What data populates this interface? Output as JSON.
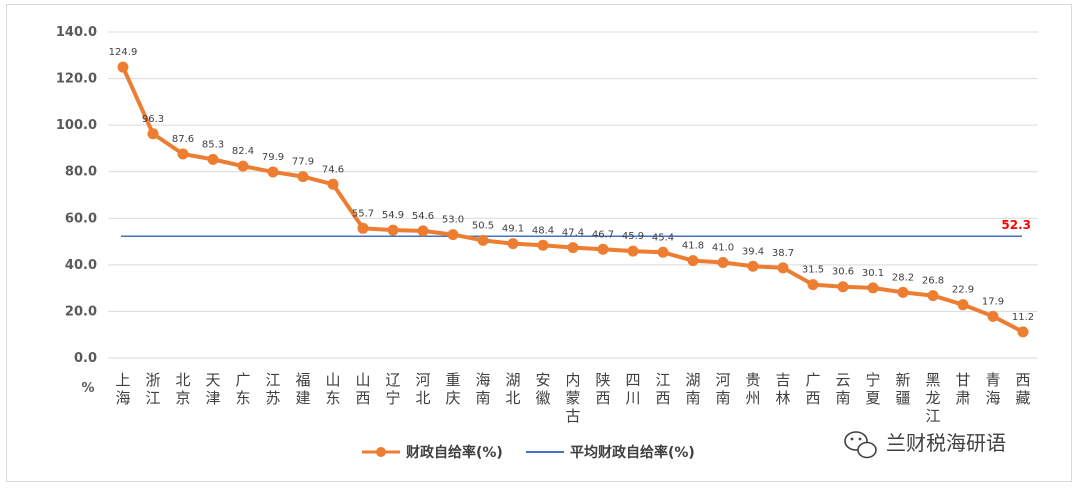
{
  "chart_data": {
    "type": "line",
    "ylim": [
      0,
      140
    ],
    "y_ticks": [
      "0.0",
      "20.0",
      "40.0",
      "60.0",
      "80.0",
      "100.0",
      "120.0",
      "140.0"
    ],
    "y_unit_label": "%",
    "grid": true,
    "legend_position": "bottom",
    "categories": [
      "上海",
      "浙江",
      "北京",
      "天津",
      "广东",
      "江苏",
      "福建",
      "山东",
      "山西",
      "辽宁",
      "河北",
      "重庆",
      "海南",
      "湖北",
      "安徽",
      "内蒙古",
      "陕西",
      "四川",
      "江西",
      "湖南",
      "河南",
      "贵州",
      "吉林",
      "广西",
      "云南",
      "宁夏",
      "新疆",
      "黑龙江",
      "甘肃",
      "青海",
      "西藏"
    ],
    "series": [
      {
        "name": "财政自给率(%)",
        "color": "#ed7d31",
        "values": [
          124.9,
          96.3,
          87.6,
          85.3,
          82.4,
          79.9,
          77.9,
          74.6,
          55.7,
          54.9,
          54.6,
          53.0,
          50.5,
          49.1,
          48.4,
          47.4,
          46.7,
          45.9,
          45.4,
          41.8,
          41.0,
          39.4,
          38.7,
          31.5,
          30.6,
          30.1,
          28.2,
          26.8,
          22.9,
          17.9,
          11.2
        ],
        "labels": [
          "124.9",
          "96.3",
          "87.6",
          "85.3",
          "82.4",
          "79.9",
          "77.9",
          "74.6",
          "55.7",
          "54.9",
          "54.6",
          "53.0",
          "50.5",
          "49.1",
          "48.4",
          "47.4",
          "46.7",
          "45.9",
          "45.4",
          "41.8",
          "41.0",
          "39.4",
          "38.7",
          "31.5",
          "30.6",
          "30.1",
          "28.2",
          "26.8",
          "22.9",
          "17.9",
          "11.2"
        ]
      },
      {
        "name": "平均财政自给率(%)",
        "color": "#4472c4",
        "value": 52.3,
        "label": "52.3",
        "label_color": "#ff0000"
      }
    ]
  },
  "watermark": {
    "icon": "wechat-icon",
    "text": "兰财税海研语"
  }
}
